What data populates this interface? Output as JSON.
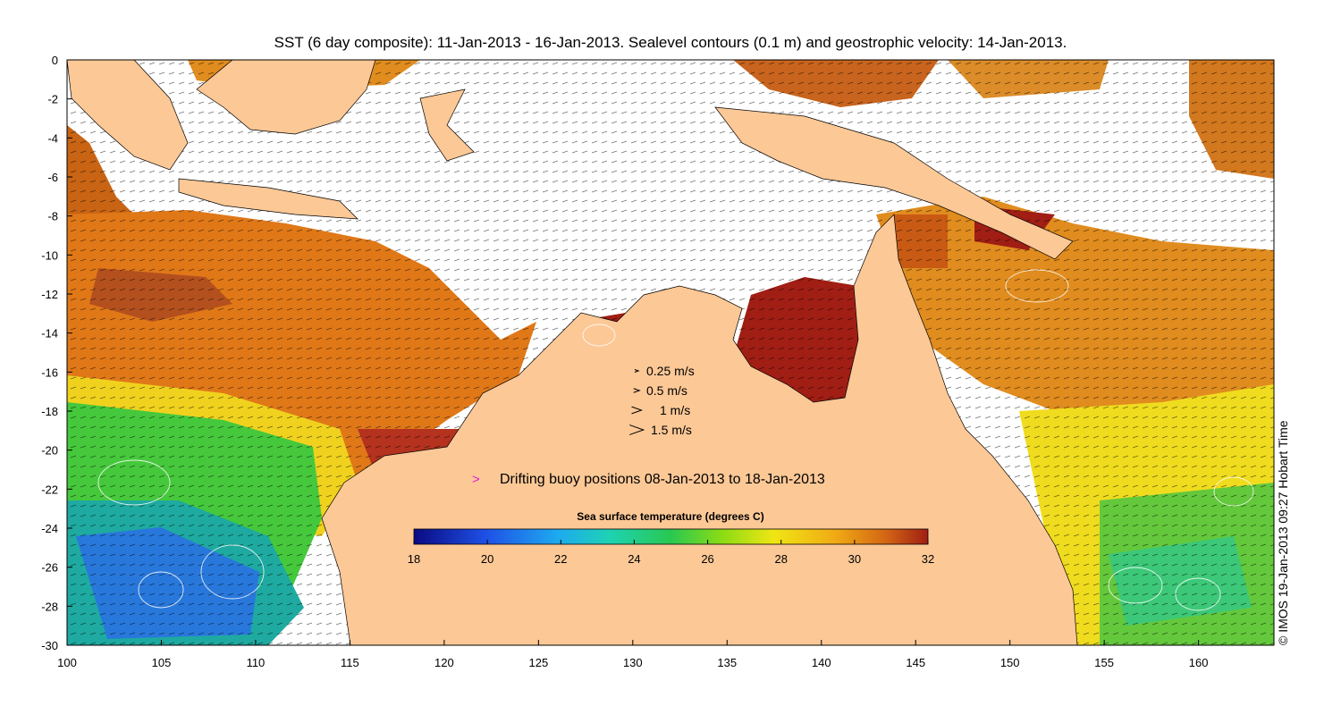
{
  "title": "SST (6 day composite): 11-Jan-2013 - 16-Jan-2013. Sealevel contours (0.1 m) and geostrophic velocity: 14-Jan-2013.",
  "axes": {
    "x_ticks": [
      "100",
      "105",
      "110",
      "115",
      "120",
      "125",
      "130",
      "135",
      "140",
      "145",
      "150",
      "155",
      "160"
    ],
    "y_ticks": [
      "0",
      "-2",
      "-4",
      "-6",
      "-8",
      "-10",
      "-12",
      "-14",
      "-16",
      "-18",
      "-20",
      "-22",
      "-24",
      "-26",
      "-28",
      "-30"
    ],
    "lon_range": [
      100,
      164
    ],
    "lat_range": [
      -30,
      0
    ]
  },
  "velocity_legend": {
    "items": [
      {
        "label": "0.25 m/s",
        "speed": 0.25
      },
      {
        "label": "0.5 m/s",
        "speed": 0.5
      },
      {
        "label": "1 m/s",
        "speed": 1
      },
      {
        "label": "1.5 m/s",
        "speed": 1.5
      }
    ]
  },
  "buoy_legend": {
    "marker": ">",
    "label": "Drifting buoy positions 08-Jan-2013 to 18-Jan-2013",
    "color": "#e020e0"
  },
  "colorbar": {
    "label": "Sea surface temperature (degrees C)",
    "ticks": [
      "18",
      "20",
      "22",
      "24",
      "26",
      "28",
      "30",
      "32"
    ],
    "range": [
      18,
      32
    ]
  },
  "credit": "© IMOS 19-Jan-2013 09:27 Hobart Time",
  "colors": {
    "land": "#fcc896",
    "warm": "#c8501e",
    "cool": "#28b43c",
    "cold": "#1e64dc",
    "contour": "#ffffff"
  }
}
